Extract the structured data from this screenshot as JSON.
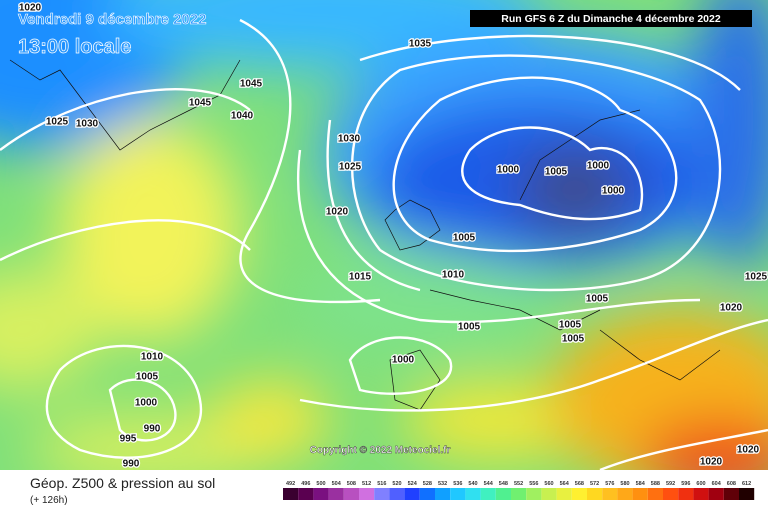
{
  "header": {
    "date": "Vendredi 9 décembre 2022",
    "time": "13:00 locale",
    "run": "Run GFS 6 Z du Dimanche 4 décembre 2022"
  },
  "copyright": "Copyright © 2022 Meteociel.fr",
  "footer": {
    "title": "Géop. Z500 & pression au sol",
    "lead": "(+ 126h)"
  },
  "legend": {
    "values": [
      492,
      496,
      500,
      504,
      508,
      512,
      516,
      520,
      524,
      528,
      532,
      536,
      540,
      544,
      548,
      552,
      556,
      560,
      564,
      568,
      572,
      576,
      580,
      584,
      588,
      592,
      596,
      600,
      604,
      608,
      612
    ]
  },
  "isobar_labels": [
    "1020",
    "1025",
    "1030",
    "1045",
    "1045",
    "1040",
    "1035",
    "1030",
    "1025",
    "1020",
    "1015",
    "1010",
    "1005",
    "1000",
    "1005",
    "1000",
    "1000",
    "1005",
    "1005",
    "1005",
    "1005",
    "1000",
    "1010",
    "1005",
    "1000",
    "990",
    "995",
    "990",
    "1025",
    "1020",
    "1020",
    "1020"
  ]
}
